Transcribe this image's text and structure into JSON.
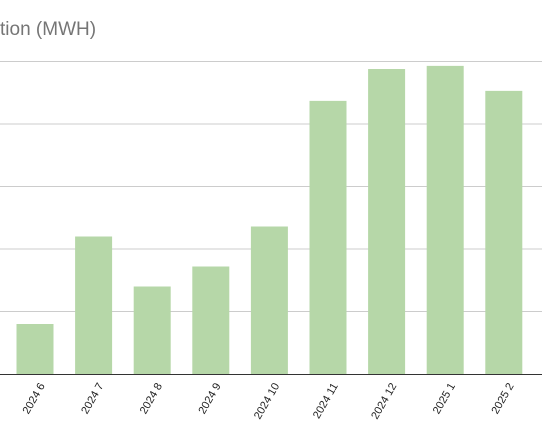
{
  "chart_data": {
    "type": "bar",
    "title": "tion (MWH)",
    "categories": [
      "2024 6",
      "2024 7",
      "2024 8",
      "2024 9",
      "2024 10",
      "2024 11",
      "2024 12",
      "2025 1",
      "2025 2"
    ],
    "values": [
      0.8,
      2.2,
      1.4,
      1.72,
      2.36,
      4.37,
      4.88,
      4.93,
      4.53
    ],
    "ylim": [
      0,
      5
    ],
    "grid": true,
    "bar_color": "#b6d7a8",
    "grid_color": "#cccccc",
    "axis_color": "#333333",
    "title_color": "#757575"
  }
}
